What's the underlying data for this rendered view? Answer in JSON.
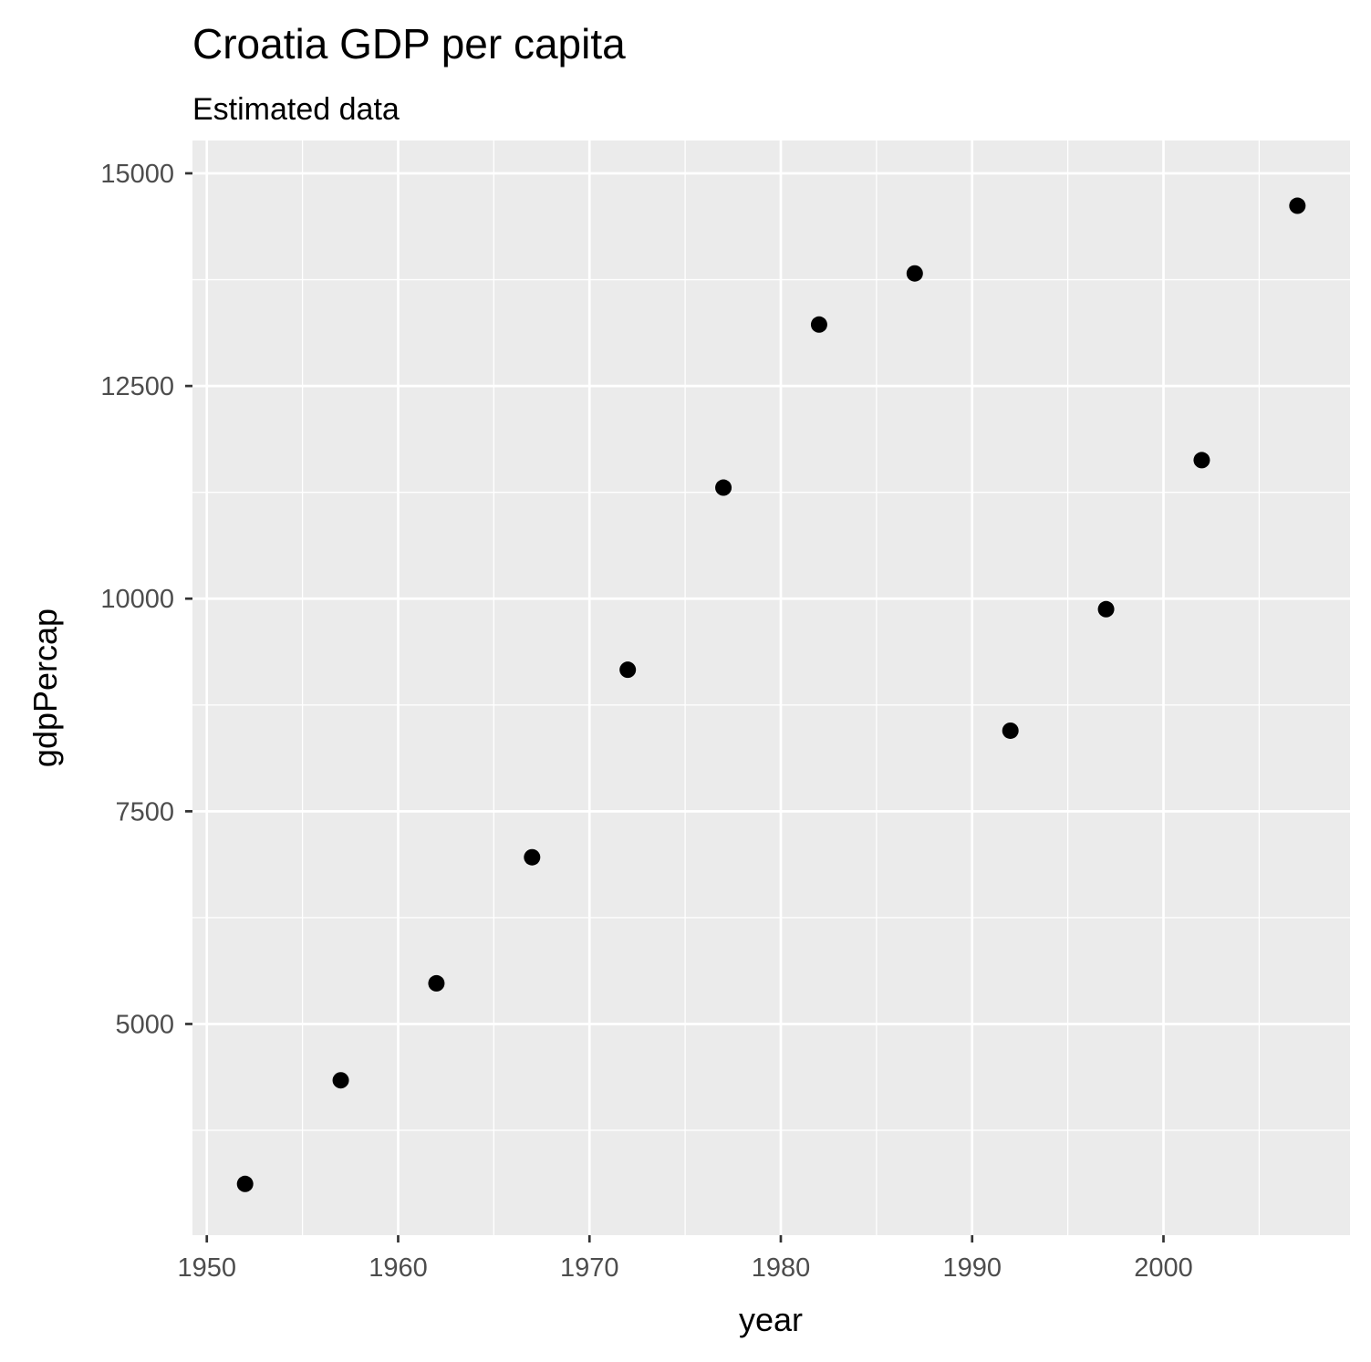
{
  "chart_data": {
    "type": "scatter",
    "title": "Croatia GDP per capita",
    "subtitle": "Estimated data",
    "xlabel": "year",
    "ylabel": "gdpPercap",
    "xlim": [
      1949.25,
      2009.75
    ],
    "ylim": [
      2517,
      15386
    ],
    "x_ticks": [
      1950,
      1960,
      1970,
      1980,
      1990,
      2000
    ],
    "x_minor_ticks": [
      1955,
      1965,
      1975,
      1985,
      1995,
      2005
    ],
    "y_ticks": [
      5000,
      7500,
      10000,
      12500,
      15000
    ],
    "y_minor_ticks": [
      3750,
      6250,
      8750,
      11250,
      13750
    ],
    "x_tick_labels": [
      "1950",
      "1960",
      "1970",
      "1980",
      "1990",
      "2000"
    ],
    "y_tick_labels": [
      "5000",
      "7500",
      "10000",
      "12500",
      "15000"
    ],
    "grid": true,
    "x": [
      1952,
      1957,
      1962,
      1967,
      1972,
      1977,
      1982,
      1987,
      1992,
      1997,
      2002,
      2007
    ],
    "y": [
      3120,
      4338,
      5478,
      6960,
      9164,
      11305,
      13222,
      13823,
      8448,
      9876,
      11628,
      14619
    ],
    "colors": {
      "panel_background": "#ebebeb",
      "grid": "#ffffff",
      "point": "#000000",
      "tick_label": "#4d4d4d",
      "tick_mark": "#333333"
    }
  }
}
